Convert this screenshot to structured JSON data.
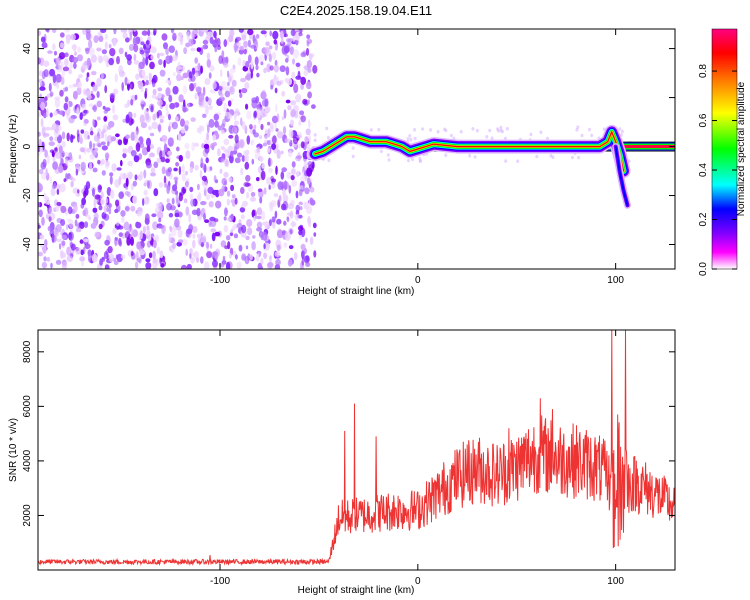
{
  "title": "C2E4.2025.158.19.04.E11",
  "chart_data": [
    {
      "type": "heatmap",
      "xlabel": "Height of straight line (km)",
      "ylabel": "Frequency (Hz)",
      "xlim": [
        -192,
        130
      ],
      "ylim": [
        -50,
        48
      ],
      "xticks": [
        -100,
        0,
        100
      ],
      "xtick_labels": [
        "-100",
        "0",
        "100"
      ],
      "yticks": [
        -40,
        -20,
        0,
        20,
        40
      ],
      "ytick_labels": [
        "-40",
        "-20",
        "0",
        "20",
        "40"
      ],
      "colorbar": {
        "label": "Normalized spectral amplitude",
        "range": [
          0,
          0.97
        ],
        "ticks": [
          0,
          0.2,
          0.4,
          0.6,
          0.8
        ],
        "tick_labels": [
          "0.0",
          "0.2",
          "0.4",
          "0.6",
          "0.8"
        ],
        "colors": [
          "#ffffff",
          "#ff00ff",
          "#7f00ff",
          "#0000ff",
          "#00ffff",
          "#00ff00",
          "#ffff00",
          "#ff7f00",
          "#ff0000",
          "#ff0080"
        ]
      },
      "noise_region": [
        -192,
        -52
      ],
      "ridge": {
        "x": [
          -52,
          -48,
          -44,
          -40,
          -36,
          -32,
          -28,
          -24,
          -20,
          -16,
          -12,
          -8,
          -4,
          0,
          4,
          8,
          20,
          40,
          60,
          80,
          92,
          96,
          98,
          100,
          102,
          104
        ],
        "freq": [
          -3,
          -2,
          0,
          2,
          4,
          4,
          3,
          2,
          2,
          2,
          1,
          0,
          -2,
          -1,
          0,
          1,
          0,
          0,
          0,
          0,
          0,
          2,
          6,
          2,
          -3,
          -10
        ]
      },
      "tail": {
        "x": [
          100,
          102,
          104,
          106
        ],
        "freq": [
          0,
          -10,
          -18,
          -24
        ]
      },
      "line_band": {
        "x": [
          8,
          130
        ],
        "freq": 0
      }
    },
    {
      "type": "line",
      "xlabel": "Height of straight line (km)",
      "ylabel": "SNR (10 * v/v)",
      "xlim": [
        -192,
        130
      ],
      "ylim": [
        0,
        8800
      ],
      "xticks": [
        -100,
        0,
        100
      ],
      "xtick_labels": [
        "-100",
        "0",
        "100"
      ],
      "yticks": [
        2000,
        4000,
        6000,
        8000
      ],
      "ytick_labels": [
        "2000",
        "4000",
        "6000",
        "8000"
      ],
      "line_color": "#ee3333",
      "envelope": {
        "x": [
          -192,
          -45,
          -40,
          -30,
          -20,
          -10,
          0,
          10,
          20,
          30,
          40,
          50,
          60,
          70,
          80,
          90,
          95,
          100,
          105,
          110,
          120,
          130
        ],
        "y": [
          300,
          300,
          1900,
          2000,
          2100,
          2200,
          2200,
          2800,
          3400,
          3700,
          3500,
          3800,
          4300,
          4100,
          4000,
          3800,
          3500,
          2800,
          3100,
          3200,
          2800,
          2300
        ]
      },
      "spikes": [
        {
          "x": -105,
          "y": 550
        },
        {
          "x": -37,
          "y": 5100
        },
        {
          "x": -32,
          "y": 6100
        },
        {
          "x": -21,
          "y": 4900
        },
        {
          "x": 25,
          "y": 4600
        },
        {
          "x": 46,
          "y": 5200
        },
        {
          "x": 62,
          "y": 6300
        },
        {
          "x": 68,
          "y": 5900
        },
        {
          "x": 98,
          "y": 8800
        },
        {
          "x": 101,
          "y": 5700
        },
        {
          "x": 105,
          "y": 8800
        }
      ]
    }
  ]
}
